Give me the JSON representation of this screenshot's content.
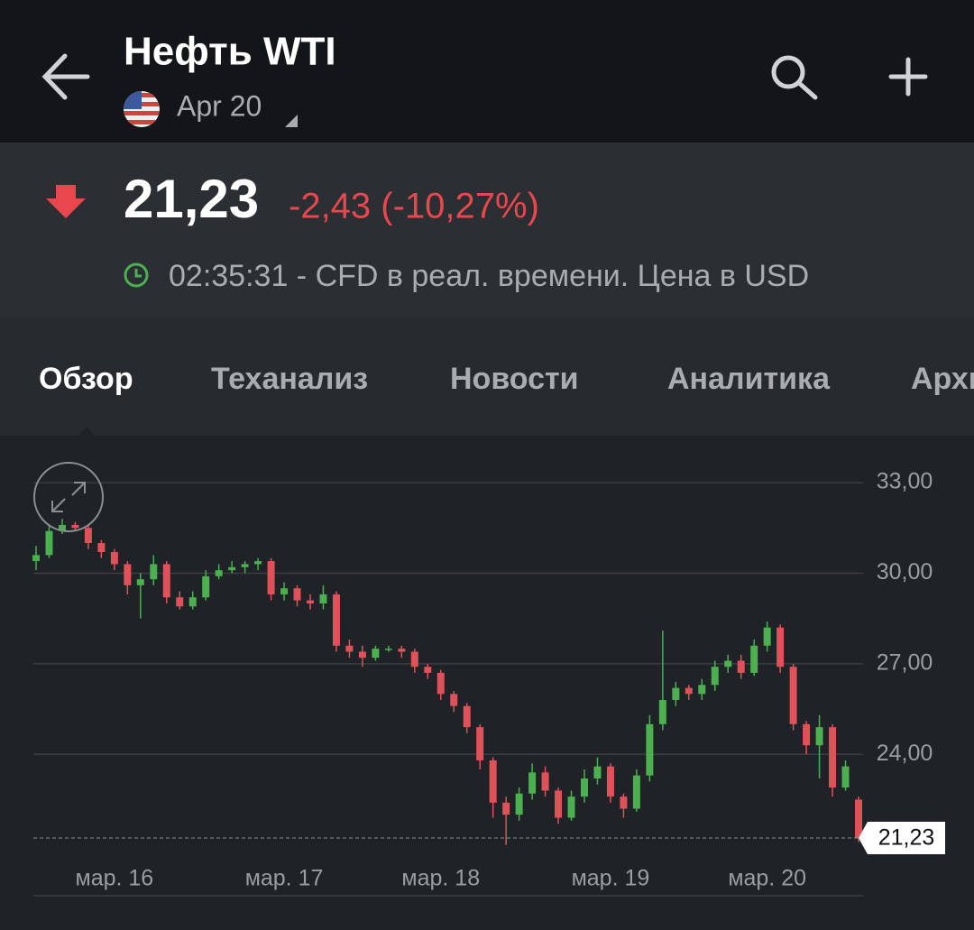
{
  "header": {
    "title": "Нефть WTI",
    "subtitle": "Apr 20"
  },
  "quote": {
    "price": "21,23",
    "change": "-2,43 (-10,27%)",
    "time": "02:35:31 - CFD в реал. времени. Цена в USD"
  },
  "tabs": [
    "Обзор",
    "Теханализ",
    "Новости",
    "Аналитика",
    "Архив"
  ],
  "chart_data": {
    "type": "candlestick",
    "categories": [
      null,
      null,
      null,
      null,
      null,
      null,
      "мар. 16",
      null,
      null,
      null,
      null,
      null,
      null,
      null,
      null,
      null,
      null,
      null,
      null,
      "мар. 17",
      null,
      null,
      null,
      null,
      null,
      null,
      null,
      null,
      null,
      null,
      null,
      "мар. 18",
      null,
      null,
      null,
      null,
      null,
      null,
      null,
      null,
      null,
      null,
      null,
      null,
      "мар. 19",
      null,
      null,
      null,
      null,
      null,
      null,
      null,
      null,
      null,
      null,
      null,
      "мар. 20",
      null,
      null,
      null,
      null,
      null,
      null,
      null
    ],
    "open": [
      30.4,
      30.6,
      31.4,
      31.6,
      31.5,
      31.0,
      30.7,
      30.3,
      29.6,
      29.8,
      30.3,
      29.2,
      28.9,
      29.2,
      29.9,
      30.1,
      30.2,
      30.3,
      30.4,
      29.3,
      29.5,
      29.1,
      29.0,
      29.3,
      27.6,
      27.4,
      27.2,
      27.5,
      27.5,
      27.4,
      26.9,
      26.7,
      26.0,
      25.6,
      24.9,
      23.8,
      22.4,
      22.0,
      22.7,
      23.4,
      22.8,
      21.9,
      22.6,
      23.2,
      23.6,
      22.6,
      22.2,
      23.3,
      25.0,
      25.8,
      26.2,
      26.0,
      26.3,
      26.9,
      27.1,
      26.7,
      27.6,
      28.2,
      26.9,
      25.0,
      24.3,
      24.9,
      22.9,
      22.5
    ],
    "high": [
      30.9,
      31.6,
      31.8,
      31.7,
      31.6,
      31.1,
      30.8,
      30.4,
      30.0,
      30.6,
      30.4,
      29.4,
      29.4,
      30.1,
      30.3,
      30.4,
      30.4,
      30.5,
      30.5,
      29.7,
      29.6,
      29.3,
      29.6,
      29.4,
      27.8,
      27.6,
      27.6,
      27.6,
      27.6,
      27.5,
      27.0,
      26.8,
      26.1,
      25.7,
      25.0,
      23.9,
      22.6,
      22.9,
      23.7,
      23.6,
      22.9,
      22.8,
      23.5,
      23.9,
      23.7,
      22.7,
      23.5,
      25.3,
      28.1,
      26.4,
      26.3,
      26.5,
      27.1,
      27.3,
      27.3,
      27.8,
      28.4,
      28.3,
      27.0,
      25.1,
      25.3,
      25.0,
      23.8,
      22.6
    ],
    "low": [
      30.1,
      30.5,
      31.3,
      31.4,
      30.8,
      30.5,
      30.1,
      29.3,
      28.5,
      29.6,
      29.0,
      28.8,
      28.8,
      29.1,
      29.8,
      30.0,
      30.0,
      30.1,
      29.1,
      29.1,
      28.9,
      28.8,
      28.8,
      27.4,
      27.2,
      26.9,
      27.1,
      27.4,
      27.2,
      26.7,
      26.5,
      25.8,
      25.4,
      24.7,
      23.5,
      21.9,
      21.0,
      21.8,
      22.5,
      22.6,
      21.7,
      21.8,
      22.4,
      23.0,
      22.4,
      21.9,
      22.1,
      23.1,
      24.8,
      25.6,
      25.8,
      25.8,
      26.1,
      26.7,
      26.5,
      26.6,
      27.4,
      26.7,
      24.8,
      24.0,
      23.2,
      22.6,
      22.8,
      21.1
    ],
    "close": [
      30.6,
      31.4,
      31.6,
      31.5,
      31.0,
      30.7,
      30.3,
      29.6,
      29.8,
      30.3,
      29.2,
      28.9,
      29.2,
      29.9,
      30.1,
      30.2,
      30.3,
      30.4,
      29.3,
      29.5,
      29.1,
      29.0,
      29.3,
      27.6,
      27.4,
      27.2,
      27.5,
      27.5,
      27.4,
      26.9,
      26.7,
      26.0,
      25.6,
      24.9,
      23.8,
      22.4,
      22.0,
      22.7,
      23.4,
      22.8,
      21.9,
      22.6,
      23.2,
      23.6,
      22.6,
      22.2,
      23.3,
      25.0,
      25.8,
      26.2,
      26.0,
      26.3,
      26.9,
      27.1,
      26.7,
      27.6,
      28.2,
      26.9,
      25.0,
      24.3,
      24.9,
      22.9,
      23.6,
      21.23
    ],
    "up_color": "#4caf50",
    "down_color": "#e0525a",
    "ylim": [
      20.9,
      33.6
    ],
    "yticks": [
      {
        "value": 24,
        "label": "24,00"
      },
      {
        "value": 27,
        "label": "27,00"
      },
      {
        "value": 30,
        "label": "30,00"
      },
      {
        "value": 33,
        "label": "33,00"
      }
    ],
    "grid": true,
    "last_price": {
      "value": 21.23,
      "label": "21,23"
    }
  }
}
